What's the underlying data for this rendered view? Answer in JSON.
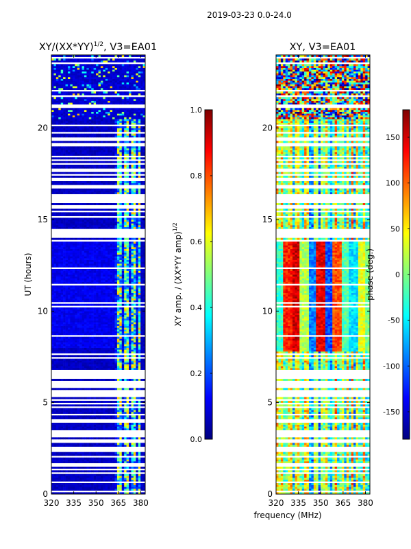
{
  "figure_title": "2019-03-23 0.0-24.0",
  "colors": {
    "jet": [
      "#00007f",
      "#0000ff",
      "#007fff",
      "#00ffff",
      "#7fff7f",
      "#ffff00",
      "#ff7f00",
      "#ff0000",
      "#7f0000"
    ],
    "background": "#ffffff",
    "axis": "#000000"
  },
  "chart_data": [
    {
      "type": "heatmap",
      "title_main": "XY/(XX*YY)",
      "title_sup": "1/2",
      "title_rest": ", V3=EA01",
      "xlabel": "",
      "ylabel": "UT (hours)",
      "xlim": [
        320,
        383
      ],
      "ylim": [
        0,
        24
      ],
      "xticks": [
        "320",
        "335",
        "350",
        "365",
        "380"
      ],
      "xtick_values": [
        320,
        335,
        350,
        365,
        380
      ],
      "yticks": [
        "0",
        "5",
        "10",
        "15",
        "20"
      ],
      "ytick_values": [
        0,
        5,
        10,
        15,
        20
      ],
      "quantity": "normalized XY amplitude (0-1), mostly low (dark blue) except channels 360-380 MHz reaching 0.3-0.7",
      "colorbar": {
        "label_main": "XY amp. / (XX*YY amp)",
        "label_sup": "1/2",
        "range": [
          0,
          1
        ],
        "ticks": [
          "0.0",
          "0.2",
          "0.4",
          "0.6",
          "0.8",
          "1.0"
        ],
        "tick_values": [
          0,
          0.2,
          0.4,
          0.6,
          0.8,
          1.0
        ]
      }
    },
    {
      "type": "heatmap",
      "title_main": "XY, V3=EA01",
      "xlabel": "frequency (MHz)",
      "ylabel": "",
      "xlim": [
        320,
        383
      ],
      "ylim": [
        0,
        24
      ],
      "xticks": [
        "320",
        "335",
        "350",
        "365",
        "380"
      ],
      "xtick_values": [
        320,
        335,
        350,
        365,
        380
      ],
      "yticks": [
        "0",
        "5",
        "10",
        "15",
        "20"
      ],
      "ytick_values": [
        0,
        5,
        10,
        15,
        20
      ],
      "quantity": "XY phase in degrees (-180 to 180), banded by frequency, noisy after 20.5 h",
      "colorbar": {
        "label": "phase (deg.)",
        "range": [
          -180,
          180
        ],
        "ticks": [
          "-150",
          "-100",
          "-50",
          "0",
          "50",
          "100",
          "150"
        ],
        "tick_values": [
          -150,
          -100,
          -50,
          0,
          50,
          100,
          150
        ]
      }
    }
  ]
}
